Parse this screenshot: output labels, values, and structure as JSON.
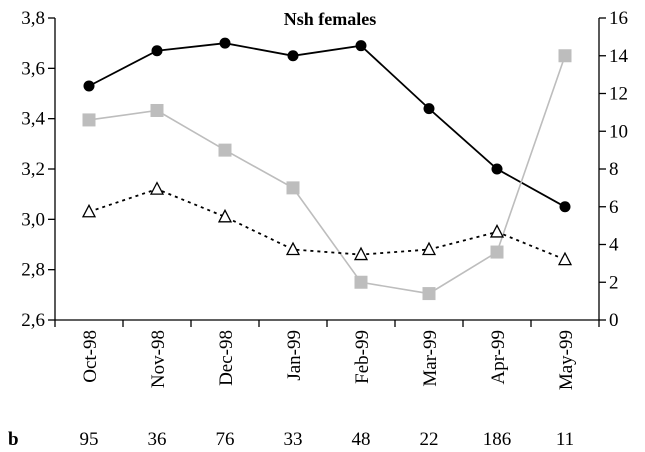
{
  "chart_data": {
    "type": "line",
    "title": "Nsh females",
    "categories": [
      "Oct-98",
      "Nov-98",
      "Dec-98",
      "Jan-99",
      "Feb-99",
      "Mar-99",
      "Apr-99",
      "May-99"
    ],
    "y_left": {
      "min": 2.6,
      "max": 3.8,
      "step": 0.2,
      "tick_labels": [
        "2,6",
        "2,8",
        "3,0",
        "3,2",
        "3,4",
        "3,6",
        "3,8"
      ]
    },
    "y_right": {
      "min": 0,
      "max": 16,
      "step": 2,
      "tick_labels": [
        "0",
        "2",
        "4",
        "6",
        "8",
        "10",
        "12",
        "14",
        "16"
      ]
    },
    "series": [
      {
        "axis": "left",
        "marker": "filled-circle",
        "line": "solid",
        "color": "#000000",
        "values": [
          3.53,
          3.67,
          3.7,
          3.65,
          3.69,
          3.44,
          3.2,
          3.05
        ]
      },
      {
        "axis": "right",
        "marker": "square",
        "line": "solid",
        "color": "#bdbdbd",
        "values": [
          10.6,
          11.1,
          9.0,
          7.0,
          2.0,
          1.4,
          3.6,
          14.0
        ]
      },
      {
        "axis": "left",
        "marker": "open-triangle",
        "line": "dotted",
        "color": "#000000",
        "values": [
          3.03,
          3.12,
          3.01,
          2.88,
          2.86,
          2.88,
          2.95,
          2.84
        ]
      }
    ],
    "grid": false,
    "footer": {
      "label": "b",
      "values": [
        "95",
        "36",
        "76",
        "33",
        "48",
        "22",
        "186",
        "11"
      ]
    }
  }
}
